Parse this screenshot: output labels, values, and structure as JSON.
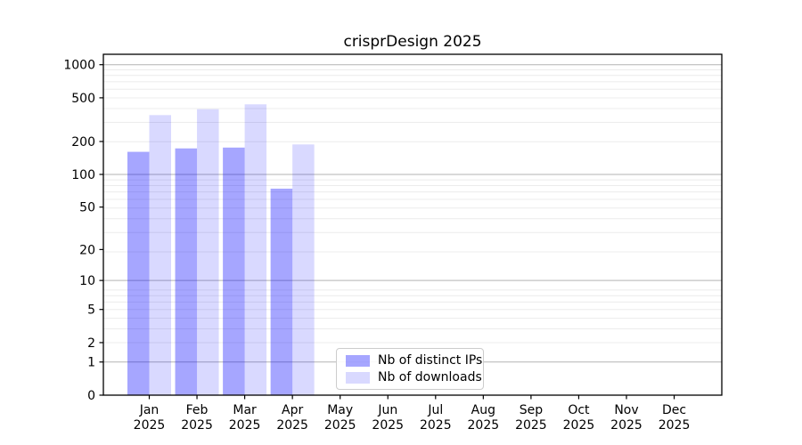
{
  "chart_data": {
    "type": "bar",
    "title": "crisprDesign 2025",
    "categories": [
      "Jan",
      "Feb",
      "Mar",
      "Apr",
      "May",
      "Jun",
      "Jul",
      "Aug",
      "Sep",
      "Oct",
      "Nov",
      "Dec"
    ],
    "year_label": "2025",
    "series": [
      {
        "name": "Nb of distinct IPs",
        "color": "#0000ff",
        "alpha": 0.35,
        "apparent_color": "#a6a6ff",
        "values": [
          161,
          173,
          176,
          74,
          null,
          null,
          null,
          null,
          null,
          null,
          null,
          null
        ]
      },
      {
        "name": "Nb of downloads",
        "color": "#0000ff",
        "alpha": 0.15,
        "apparent_color": "#d9d9ff",
        "values": [
          348,
          394,
          436,
          188,
          null,
          null,
          null,
          null,
          null,
          null,
          null,
          null
        ]
      }
    ],
    "yscale": "log1p",
    "yticks": [
      0,
      1,
      2,
      5,
      10,
      20,
      50,
      100,
      200,
      500,
      1000
    ],
    "ylim": [
      0,
      1245
    ],
    "xlabel": "",
    "ylabel": "",
    "grid": "horizontal, log major+minor",
    "legend_position": "inside lower-center",
    "colors": {
      "background": "#ffffff",
      "axis": "#000000",
      "grid_major": "#b3b3b3",
      "grid_minor": "#ececec",
      "text": "#000000"
    }
  }
}
